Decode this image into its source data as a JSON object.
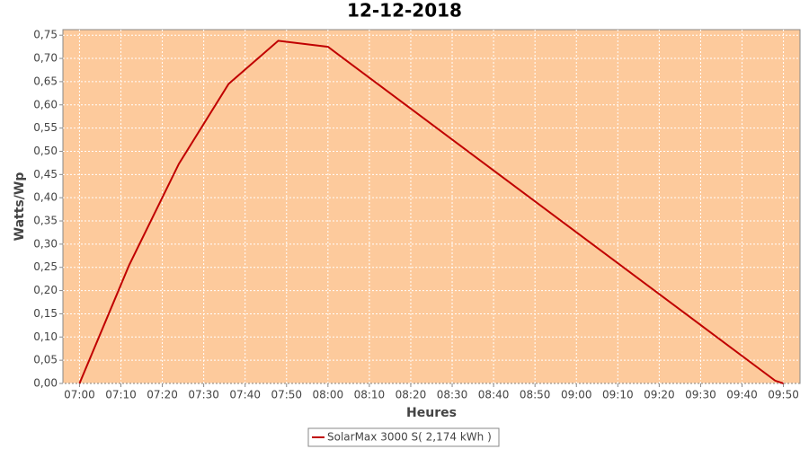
{
  "chart_data": {
    "type": "line",
    "title": "12-12-2018",
    "xlabel": "Heures",
    "ylabel": "Watts/Wp",
    "x": [
      "07:00",
      "07:12",
      "07:24",
      "07:36",
      "07:48",
      "08:00",
      "09:48",
      "09:50"
    ],
    "series": [
      {
        "name": "SolarMax 3000 S( 2,174 kWh )",
        "color": "#c00000",
        "values": [
          0,
          0.255,
          0.473,
          0.645,
          0.738,
          0.725,
          0.006,
          0
        ]
      }
    ],
    "xlim": [
      "06:56",
      "09:54"
    ],
    "xticks": [
      "07:00",
      "07:10",
      "07:20",
      "07:30",
      "07:40",
      "07:50",
      "08:00",
      "08:10",
      "08:20",
      "08:30",
      "08:40",
      "08:50",
      "09:00",
      "09:10",
      "09:20",
      "09:30",
      "09:40",
      "09:50"
    ],
    "ylim": [
      0,
      0.762
    ],
    "yticks": [
      {
        "value": 0,
        "label": "0,00"
      },
      {
        "value": 0.05,
        "label": "0,05"
      },
      {
        "value": 0.1,
        "label": "0,10"
      },
      {
        "value": 0.15,
        "label": "0,15"
      },
      {
        "value": 0.2,
        "label": "0,20"
      },
      {
        "value": 0.25,
        "label": "0,25"
      },
      {
        "value": 0.3,
        "label": "0,30"
      },
      {
        "value": 0.35,
        "label": "0,35"
      },
      {
        "value": 0.4,
        "label": "0,40"
      },
      {
        "value": 0.45,
        "label": "0,45"
      },
      {
        "value": 0.5,
        "label": "0,50"
      },
      {
        "value": 0.55,
        "label": "0,55"
      },
      {
        "value": 0.6,
        "label": "0,60"
      },
      {
        "value": 0.65,
        "label": "0,65"
      },
      {
        "value": 0.7,
        "label": "0,70"
      },
      {
        "value": 0.75,
        "label": "0,75"
      }
    ],
    "grid": true,
    "plot_background": "#fdca9c",
    "legend_position": "bottom"
  }
}
